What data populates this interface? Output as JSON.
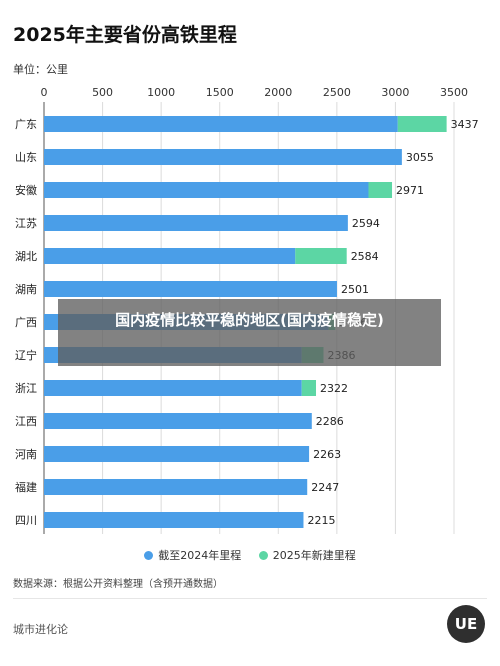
{
  "header": {
    "title": "2025年主要省份高铁里程",
    "unit": "单位：公里"
  },
  "chart_data": {
    "type": "bar",
    "orientation": "horizontal",
    "stacked": true,
    "title": "2025年主要省份高铁里程",
    "xlim": [
      0,
      3500
    ],
    "xticks": [
      0,
      500,
      1000,
      1500,
      2000,
      2500,
      3000,
      3500
    ],
    "grid": true,
    "legend_position": "bottom",
    "categories": [
      "广东",
      "山东",
      "安徽",
      "江苏",
      "湖北",
      "湖南",
      "广西",
      "辽宁",
      "浙江",
      "江西",
      "河南",
      "福建",
      "四川"
    ],
    "series": [
      {
        "name": "截至2024年里程",
        "color": "#4a9ee8",
        "values": [
          3020,
          3055,
          2770,
          2594,
          2145,
          2501,
          2430,
          2200,
          2200,
          2286,
          2263,
          2247,
          2215
        ]
      },
      {
        "name": "2025年新建里程",
        "color": "#5cd6a4",
        "values": [
          417,
          0,
          201,
          0,
          439,
          0,
          56,
          186,
          122,
          0,
          0,
          0,
          0
        ]
      }
    ],
    "totals": [
      3437,
      3055,
      2971,
      2594,
      2584,
      2501,
      2486,
      2386,
      2322,
      2286,
      2263,
      2247,
      2215
    ]
  },
  "footer": {
    "source": "数据来源：根据公开资料整理（含预开通数据）",
    "brand": "城市进化论",
    "logo_text": "UE"
  },
  "overlay": {
    "text": "国内疫情比较平稳的地区(国内疫情稳定)"
  }
}
